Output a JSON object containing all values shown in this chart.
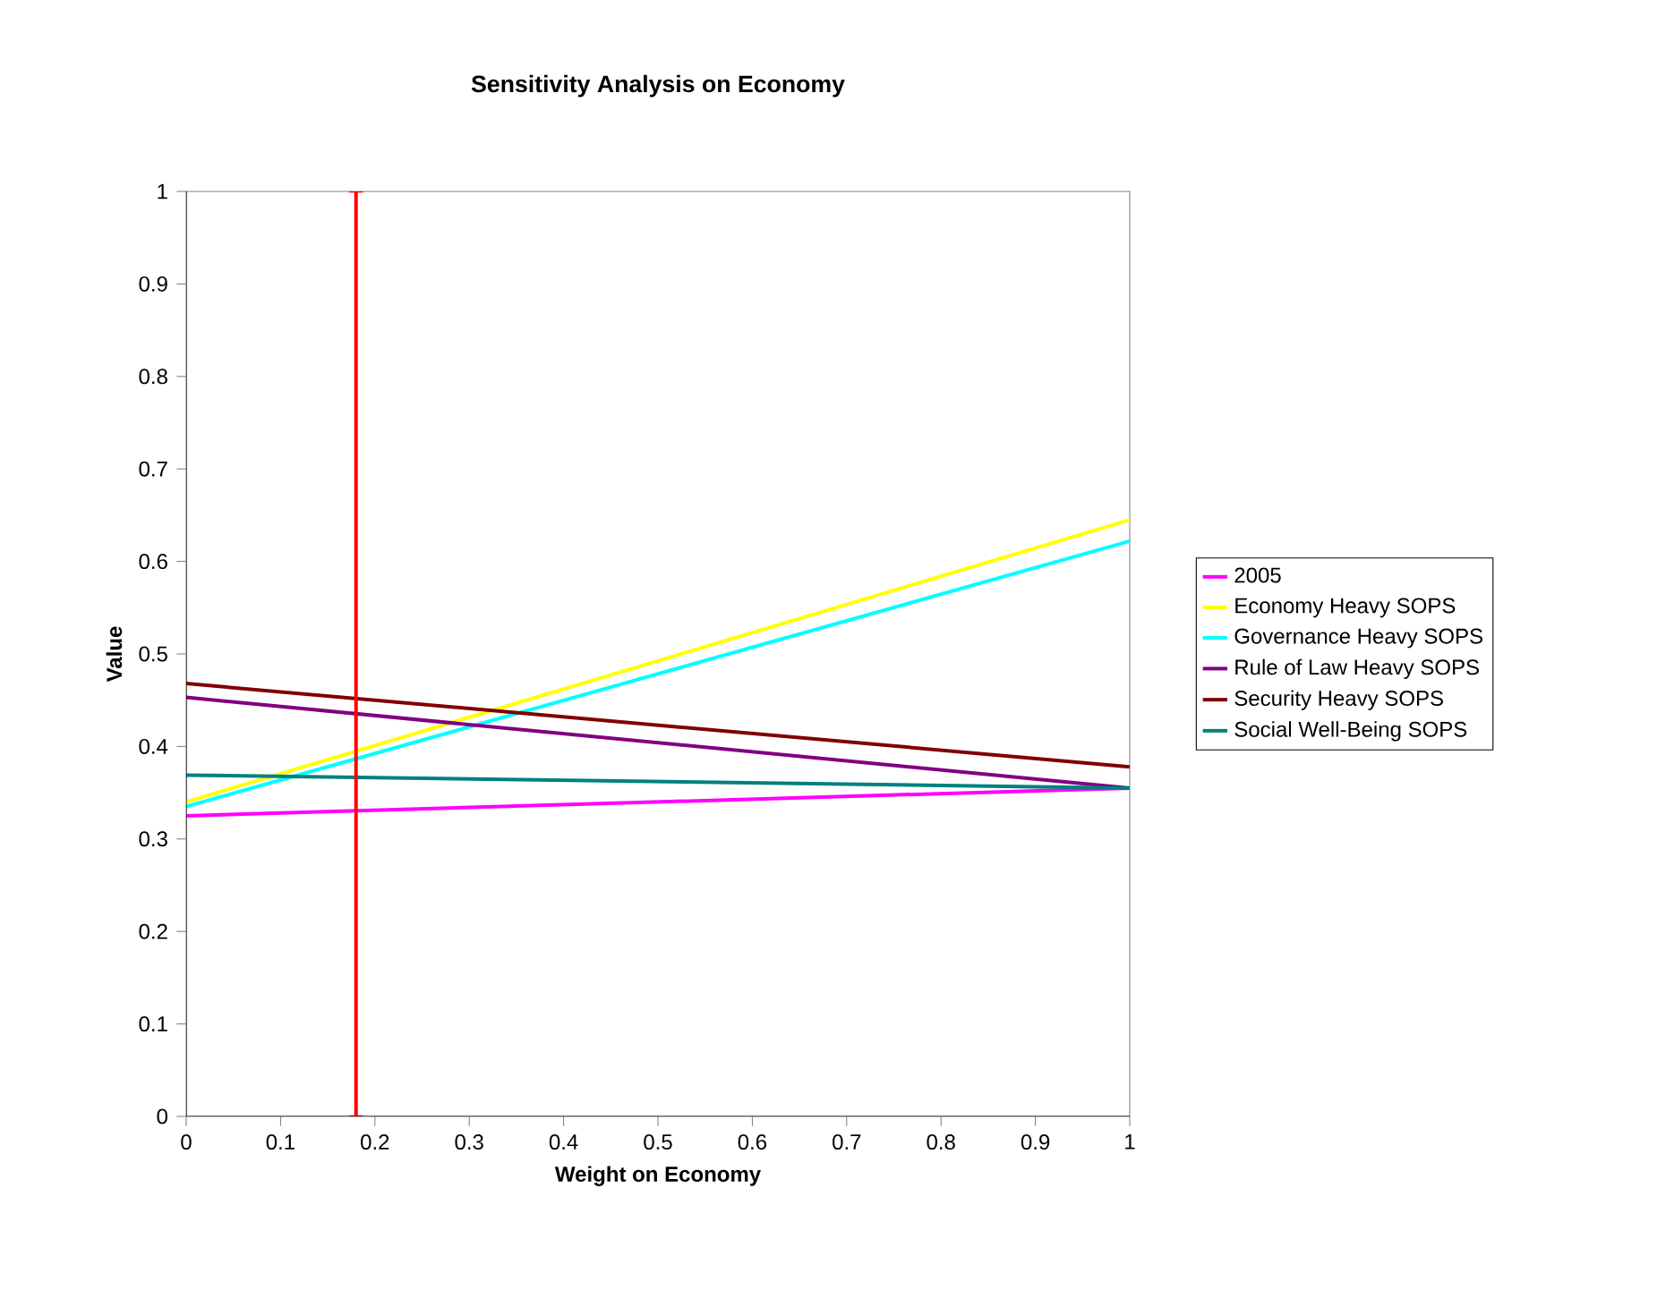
{
  "chart_data": {
    "type": "line",
    "title": "Sensitivity Analysis on Economy",
    "xlabel": "Weight on Economy",
    "ylabel": "Value",
    "x": [
      0,
      1
    ],
    "series": [
      {
        "name": "2005",
        "color": "#ff00ff",
        "values": [
          0.325,
          0.355
        ]
      },
      {
        "name": "Economy Heavy SOPS",
        "color": "#ffff00",
        "values": [
          0.34,
          0.645
        ]
      },
      {
        "name": "Governance Heavy SOPS",
        "color": "#00ffff",
        "values": [
          0.335,
          0.622
        ]
      },
      {
        "name": "Rule of Law Heavy SOPS",
        "color": "#800080",
        "values": [
          0.453,
          0.355
        ]
      },
      {
        "name": "Security Heavy SOPS",
        "color": "#800000",
        "values": [
          0.468,
          0.378
        ]
      },
      {
        "name": "Social Well-Being SOPS",
        "color": "#008080",
        "values": [
          0.369,
          0.355
        ]
      }
    ],
    "ref_lines": [
      {
        "axis": "x",
        "value": 0.18,
        "color": "#ff0000"
      }
    ],
    "xlim": [
      0,
      1
    ],
    "ylim": [
      0,
      1
    ],
    "xticks": [
      0,
      0.1,
      0.2,
      0.3,
      0.4,
      0.5,
      0.6,
      0.7,
      0.8,
      0.9,
      1
    ],
    "yticks": [
      0,
      0.1,
      0.2,
      0.3,
      0.4,
      0.5,
      0.6,
      0.7,
      0.8,
      0.9,
      1
    ],
    "grid": false,
    "legend": "right",
    "marker": "none",
    "line_style": "solid"
  }
}
